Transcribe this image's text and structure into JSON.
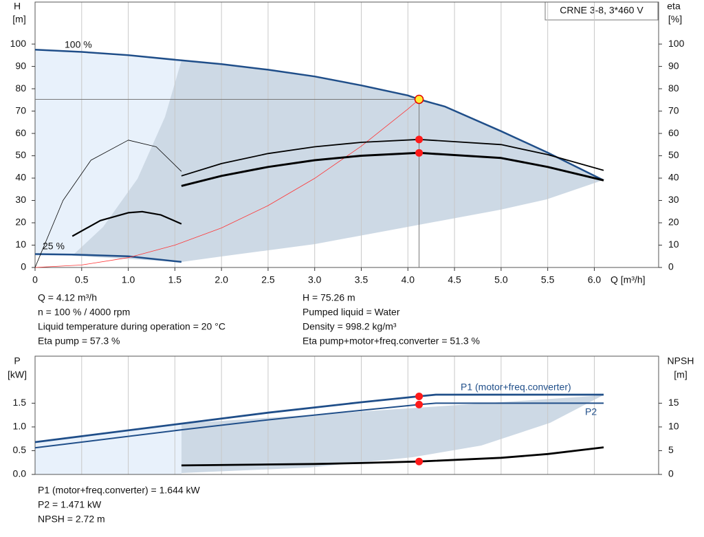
{
  "chart_data": [
    {
      "type": "line",
      "title": "CRNE 3-8, 3*460 V",
      "x_label": "Q [m³/h]",
      "y_label": [
        "H",
        "[m]"
      ],
      "y2_label": [
        "eta",
        "[%]"
      ],
      "xlim": [
        0,
        6.69
      ],
      "ylim": [
        0,
        118.8
      ],
      "y2lim": [
        0,
        118.8
      ],
      "xticks": [
        0,
        0.5,
        {
          "value": 1,
          "label": "1.0"
        },
        1.5,
        {
          "value": 2,
          "label": "2.0"
        },
        2.5,
        {
          "value": 3,
          "label": "3.0"
        },
        3.5,
        {
          "value": 4,
          "label": "4.0"
        },
        4.5,
        {
          "value": 5,
          "label": "5.0"
        },
        5.5,
        {
          "value": 6,
          "label": "6.0"
        }
      ],
      "yticks": [
        0,
        10,
        20,
        30,
        40,
        50,
        60,
        70,
        80,
        90,
        100
      ],
      "y2ticks": [
        0,
        10,
        20,
        30,
        40,
        50,
        60,
        70,
        80,
        90,
        100
      ],
      "grid": true,
      "duty_point": {
        "x": 4.12,
        "y": 75.26
      },
      "series": [
        {
          "name": "100 %",
          "color": "#1f4e89",
          "x": [
            0,
            0.5,
            1,
            1.57,
            2,
            2.5,
            3,
            3.5,
            4,
            4.12,
            4.4,
            5,
            5.5,
            6.1
          ],
          "values": [
            97.5,
            96.5,
            95,
            92.7,
            91,
            88.5,
            85.5,
            81.5,
            77,
            75.26,
            72,
            61,
            51.4,
            39
          ]
        },
        {
          "name": "25 %",
          "color": "#1f4e89",
          "x": [
            0,
            0.4,
            1,
            1.57
          ],
          "values": [
            6,
            5.8,
            5,
            2.5
          ]
        },
        {
          "color": "#ff3333",
          "x": [
            0,
            0.5,
            1,
            1.5,
            2,
            2.5,
            3,
            3.5,
            4,
            4.12
          ],
          "values": [
            0,
            1.1,
            4.4,
            10,
            17.7,
            27.7,
            39.9,
            54.3,
            70.9,
            75.26
          ]
        },
        {
          "color": "#000000",
          "axis": "y2",
          "marker": true,
          "x": [
            1.57,
            2,
            2.5,
            3,
            3.5,
            4.12,
            5,
            5.5,
            6.1
          ],
          "values": [
            41,
            46.5,
            51,
            54,
            56,
            57.3,
            55,
            50.5,
            43.5
          ]
        },
        {
          "color": "#000000",
          "axis": "y2",
          "marker": true,
          "x": [
            1.57,
            2,
            2.5,
            3,
            3.5,
            4.12,
            5,
            5.5,
            6.1
          ],
          "values": [
            36.5,
            41,
            45,
            48,
            50,
            51.3,
            49,
            45,
            39
          ]
        },
        {
          "color": "#000000",
          "axis": "y2",
          "x": [
            0,
            0.3,
            0.6,
            1,
            1.3,
            1.57
          ],
          "values": [
            0,
            30,
            48,
            57,
            54,
            43
          ]
        },
        {
          "color": "#000000",
          "axis": "y2",
          "x": [
            0.4,
            0.7,
            1,
            1.15,
            1.35,
            1.57
          ],
          "values": [
            14,
            21,
            24.5,
            25,
            23.5,
            19.5
          ]
        }
      ]
    },
    {
      "type": "line",
      "y_label": [
        "P",
        "[kW]"
      ],
      "y2_label": [
        "NPSH",
        "[m]"
      ],
      "xlim": [
        0,
        6.69
      ],
      "ylim": [
        0,
        2.49
      ],
      "y2lim": [
        0,
        24.9
      ],
      "yticks": [
        {
          "value": 0,
          "label": "0.0"
        },
        0.5,
        {
          "value": 1,
          "label": "1.0"
        },
        1.5
      ],
      "y2ticks": [
        0,
        5,
        10,
        15
      ],
      "grid": true,
      "series": [
        {
          "name": "P1 (motor+freq.converter)",
          "color": "#1f4e89",
          "marker": true,
          "x": [
            0,
            1.57,
            2.5,
            3.5,
            4.12,
            4.3,
            5,
            6.1
          ],
          "values": [
            0.68,
            1.07,
            1.3,
            1.52,
            1.644,
            1.68,
            1.68,
            1.68
          ]
        },
        {
          "name": "P2",
          "color": "#1f4e89",
          "marker": true,
          "x": [
            0,
            1.57,
            2.5,
            3.5,
            4.12,
            4.3,
            5,
            6.1
          ],
          "values": [
            0.56,
            0.94,
            1.15,
            1.35,
            1.471,
            1.5,
            1.5,
            1.5
          ]
        },
        {
          "color": "#000000",
          "axis": "y2",
          "marker": true,
          "x": [
            1.57,
            2.5,
            3,
            3.5,
            4.12,
            5,
            5.5,
            6.1
          ],
          "values": [
            1.9,
            2.1,
            2.2,
            2.4,
            2.72,
            3.5,
            4.3,
            5.7
          ]
        }
      ]
    }
  ],
  "hydraulic_info": {
    "left": [
      "Q = 4.12 m³/h",
      "n = 100 % / 4000 rpm",
      "Liquid temperature during operation = 20 °C",
      "Eta pump = 57.3 %"
    ],
    "right": [
      "H = 75.26 m",
      "Pumped liquid = Water",
      "Density = 998.2 kg/m³",
      "Eta pump+motor+freq.converter = 51.3 %"
    ]
  },
  "power_info": [
    "P1 (motor+freq.converter) = 1.644 kW",
    "P2 = 1.471 kW",
    "NPSH = 2.72 m"
  ]
}
